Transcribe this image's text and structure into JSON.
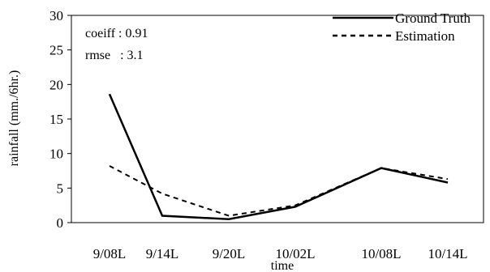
{
  "chart_data": {
    "type": "line",
    "categories": [
      "9/08L",
      "9/14L",
      "9/20L",
      "10/02L",
      "10/08L",
      "10/14L"
    ],
    "series": [
      {
        "name": "Ground Truth",
        "values": [
          18.6,
          1.0,
          0.5,
          2.3,
          7.9,
          5.8
        ],
        "style": "solid"
      },
      {
        "name": "Estimation",
        "values": [
          8.2,
          4.2,
          1.0,
          2.5,
          7.9,
          6.3
        ],
        "style": "dashed"
      }
    ],
    "xlabel": "time",
    "ylabel": "rainfall (mm./6hr.)",
    "ylim": [
      0,
      30
    ],
    "yticks": [
      0,
      5,
      10,
      15,
      20,
      25,
      30
    ],
    "grid": false,
    "legend_position": "top-right",
    "annotations": [
      "coeiff : 0.91",
      "rmse   : 3.1"
    ],
    "line_color": "#000000"
  }
}
